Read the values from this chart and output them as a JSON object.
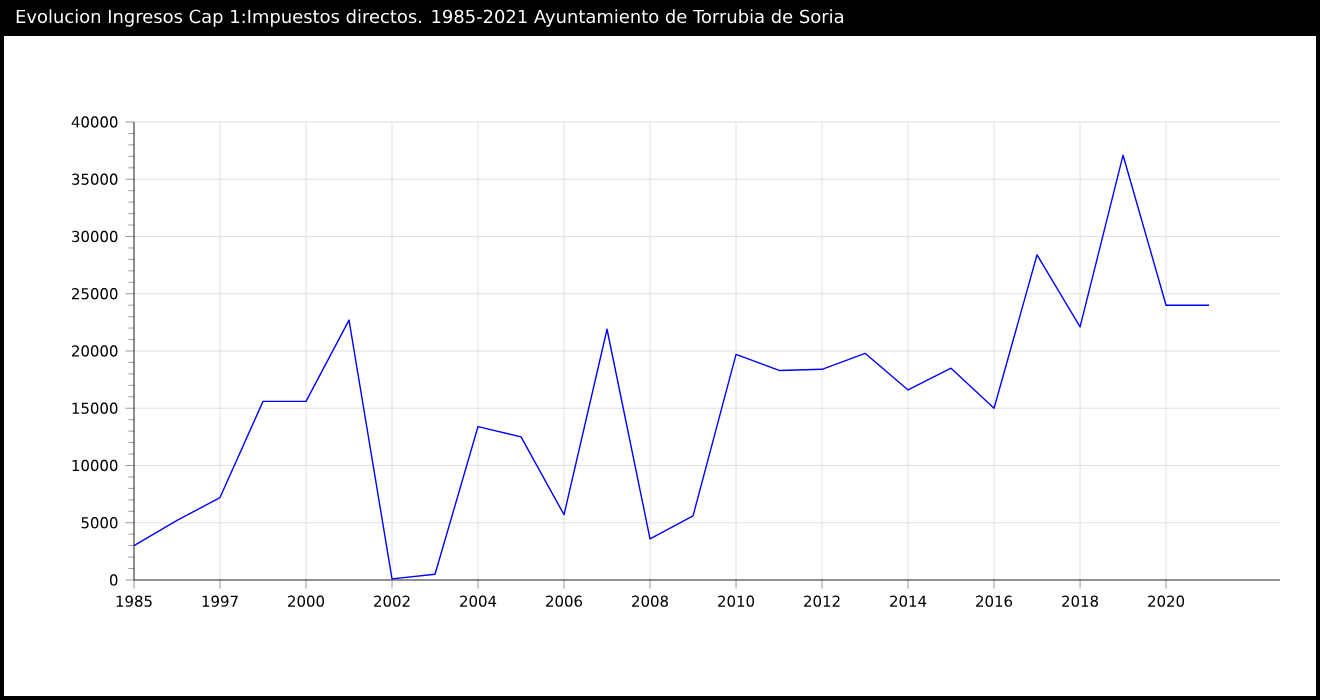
{
  "chart_data": {
    "type": "line",
    "title": "Evolucion Ingresos Cap 1:Impuestos directos. 1985-2021 Ayuntamiento de Torrubia de Soria",
    "categories": [
      "1985",
      null,
      "1997",
      null,
      "2000",
      null,
      "2002",
      null,
      "2004",
      null,
      "2006",
      null,
      "2008",
      null,
      "2010",
      null,
      "2012",
      null,
      "2014",
      null,
      "2016",
      null,
      "2018",
      null,
      "2020",
      null
    ],
    "values": [
      3000,
      5200,
      7200,
      15600,
      15600,
      22700,
      100,
      500,
      13400,
      12500,
      5700,
      21900,
      3600,
      5600,
      19700,
      18300,
      18400,
      19800,
      16600,
      18500,
      15000,
      28400,
      22100,
      37100,
      24000,
      24000
    ],
    "color": "#0000ff",
    "ylim": [
      0,
      40000
    ],
    "yticks": [
      0,
      5000,
      10000,
      15000,
      20000,
      25000,
      30000,
      35000,
      40000
    ],
    "grid": true
  }
}
